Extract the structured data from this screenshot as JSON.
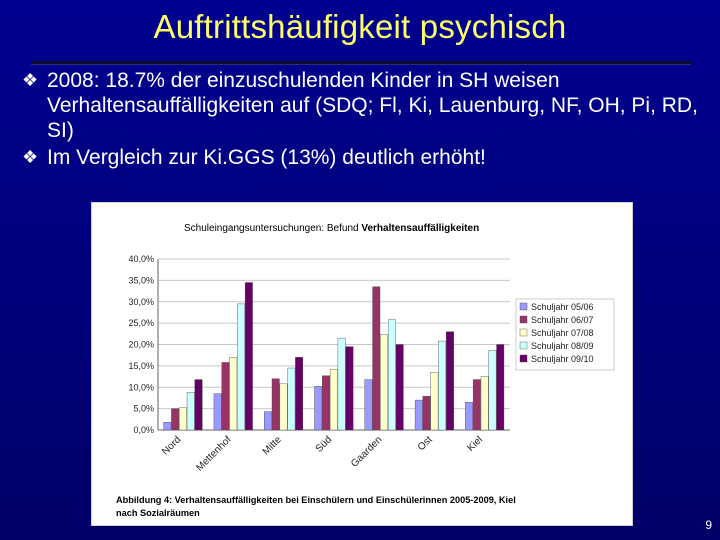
{
  "slide": {
    "title": "Auftrittshäufigkeit psychisch",
    "bullets": [
      "2008: 18.7% der einzuschulenden Kinder in SH weisen Verhaltensauffälligkeiten auf (SDQ; Fl, Ki, Lauenburg, NF, OH, Pi, RD, SI)",
      "Im Vergleich zur Ki.GGS (13%) deutlich erhöht!"
    ],
    "bullet_icon": "diamond-bullet-icon",
    "page_number": "9"
  },
  "chart_data": {
    "type": "bar",
    "title_prefix": "Schuleingangsuntersuchungen: Befund ",
    "title_bold": "Verhaltensauffälligkeiten",
    "caption_bold": "Abbildung 4: Verhaltensauffälligkeiten bei Einschülern und Einschülerinnen 2005-2009, Kiel nach Sozialräumen",
    "categories": [
      "Nord",
      "Mettenhof",
      "Mitte",
      "Süd",
      "Gaarden",
      "Ost",
      "Kiel"
    ],
    "ylim": [
      0,
      40
    ],
    "yticks": [
      "0,0%",
      "5,0%",
      "10,0%",
      "15,0%",
      "20,0%",
      "25,0%",
      "30,0%",
      "35,0%",
      "40,0%"
    ],
    "grid": true,
    "legend_position": "right",
    "series": [
      {
        "name": "Schuljahr 05/06",
        "color": "#9999ff",
        "values": [
          1.8,
          8.5,
          4.3,
          10.2,
          11.8,
          7.0,
          6.5
        ]
      },
      {
        "name": "Schuljahr 06/07",
        "color": "#993366",
        "values": [
          5.0,
          15.8,
          12.0,
          12.7,
          33.5,
          7.9,
          11.8
        ]
      },
      {
        "name": "Schuljahr 07/08",
        "color": "#ffffcc",
        "values": [
          5.2,
          17.0,
          10.8,
          14.2,
          22.3,
          13.5,
          12.5
        ]
      },
      {
        "name": "Schuljahr 08/09",
        "color": "#ccffff",
        "values": [
          8.8,
          29.5,
          14.5,
          21.5,
          25.8,
          20.8,
          18.6
        ]
      },
      {
        "name": "Schuljahr 09/10",
        "color": "#660066",
        "values": [
          11.8,
          34.5,
          17.0,
          19.5,
          20.0,
          23.0,
          20.0
        ]
      }
    ]
  }
}
